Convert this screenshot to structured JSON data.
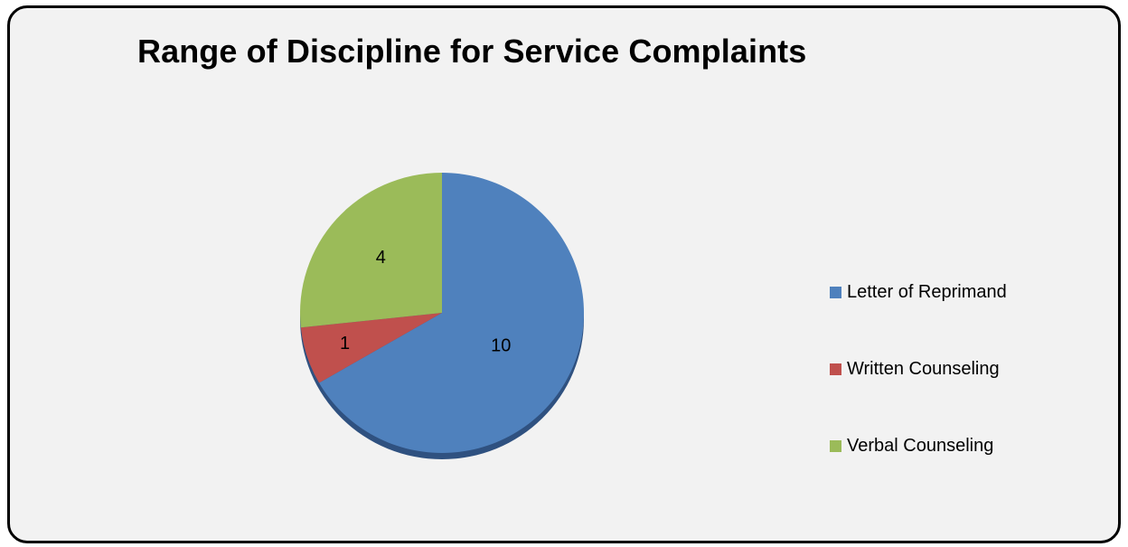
{
  "chart_data": {
    "type": "pie",
    "title": "Range of Discipline for Service Complaints",
    "categories": [
      "Letter of Reprimand",
      "Written Counseling",
      "Verbal Counseling"
    ],
    "values": [
      10,
      1,
      4
    ],
    "colors": [
      "#4f81bd",
      "#c0504d",
      "#9bbb59"
    ],
    "data_labels": [
      "10",
      "1",
      "4"
    ],
    "legend_placement": "right"
  }
}
